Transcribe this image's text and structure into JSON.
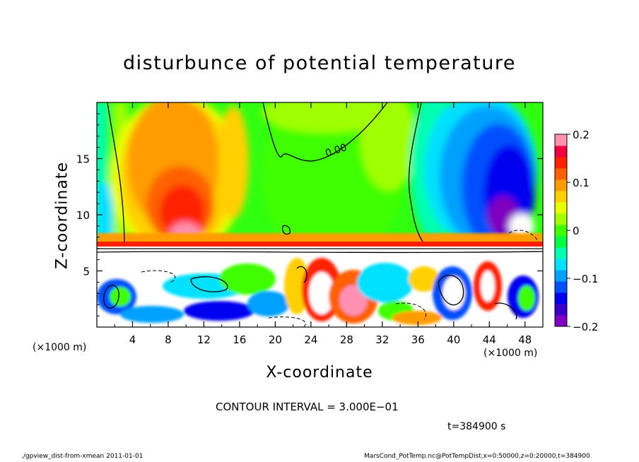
{
  "chart_data": {
    "type": "heatmap",
    "title": "disturbunce of potential temperature",
    "xlabel": "X-coordinate",
    "ylabel": "Z-coordinate",
    "x_unit_left": "(×1000 m)",
    "x_unit_right": "(×1000 m)",
    "xlim": [
      0,
      50
    ],
    "ylim": [
      0,
      20
    ],
    "x_ticks": [
      4,
      8,
      12,
      16,
      20,
      24,
      28,
      32,
      36,
      40,
      44,
      48
    ],
    "y_ticks": [
      5,
      10,
      15
    ],
    "colorbar": {
      "range": [
        -0.2,
        0.2
      ],
      "ticks": [
        {
          "value": 0.2,
          "label": "0.2"
        },
        {
          "value": 0.1,
          "label": "0.1"
        },
        {
          "value": 0,
          "label": "0"
        },
        {
          "value": -0.1,
          "label": "−0.1"
        },
        {
          "value": -0.2,
          "label": "−0.2"
        }
      ],
      "colors": [
        "#7f00bf",
        "#3a00c8",
        "#0000f0",
        "#0050ff",
        "#00a0ff",
        "#00e0ff",
        "#00ffb0",
        "#00ff40",
        "#40ff00",
        "#a0ff00",
        "#e8ff00",
        "#ffd000",
        "#ff9c00",
        "#ff6000",
        "#ff2000",
        "#f00040",
        "#ff90b0"
      ]
    },
    "contour_label": "0.00",
    "contour_interval": "CONTOUR INTERVAL = 3.000E−01",
    "time": "t=384900 s",
    "footer_left": "./gpview_dist-from-xmean  2011-01-01",
    "footer_right": "MarsCond_PotTemp.nc@PotTempDist,x=0:50000,z=0:20000,t=384900"
  }
}
